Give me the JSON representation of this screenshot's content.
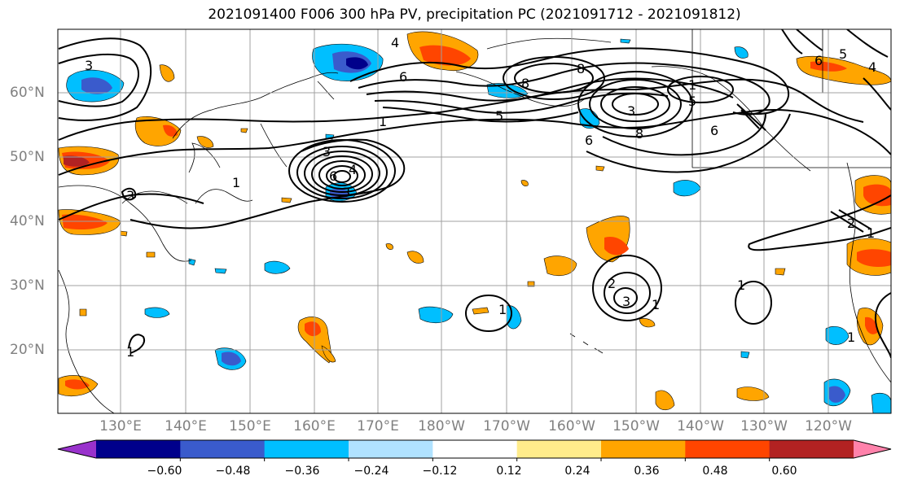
{
  "title": "2021091400 F006 300 hPa PV, precipitation PC (2021091712 - 2021091812)",
  "lat_labels": [
    "60°N",
    "50°N",
    "40°N",
    "30°N",
    "20°N"
  ],
  "lon_labels": [
    "130°E",
    "140°E",
    "150°E",
    "160°E",
    "170°E",
    "180°W",
    "170°W",
    "160°W",
    "150°W",
    "140°W",
    "130°W",
    "120°W"
  ],
  "colorbar": {
    "colors": [
      "#9932CC",
      "#00008B",
      "#3A5BCC",
      "#00BFFF",
      "#B0E2FF",
      "#FFFFFF",
      "#FFEC8B",
      "#FFA500",
      "#FF4500",
      "#B22222",
      "#FF82AB"
    ],
    "labels": [
      "−0.60",
      "−0.48",
      "−0.36",
      "−0.24",
      "−0.12",
      "0.12",
      "0.24",
      "0.36",
      "0.48",
      "0.60"
    ]
  },
  "contour_labels": [
    "3",
    "4",
    "1",
    "6",
    "8",
    "5",
    "6",
    "3",
    "8",
    "1",
    "5",
    "6",
    "5",
    "4",
    "3",
    "1",
    "3",
    "1",
    "2",
    "3",
    "1",
    "1",
    "1",
    "2",
    "1",
    "1",
    "6",
    "3",
    "4",
    "6",
    "8"
  ]
}
